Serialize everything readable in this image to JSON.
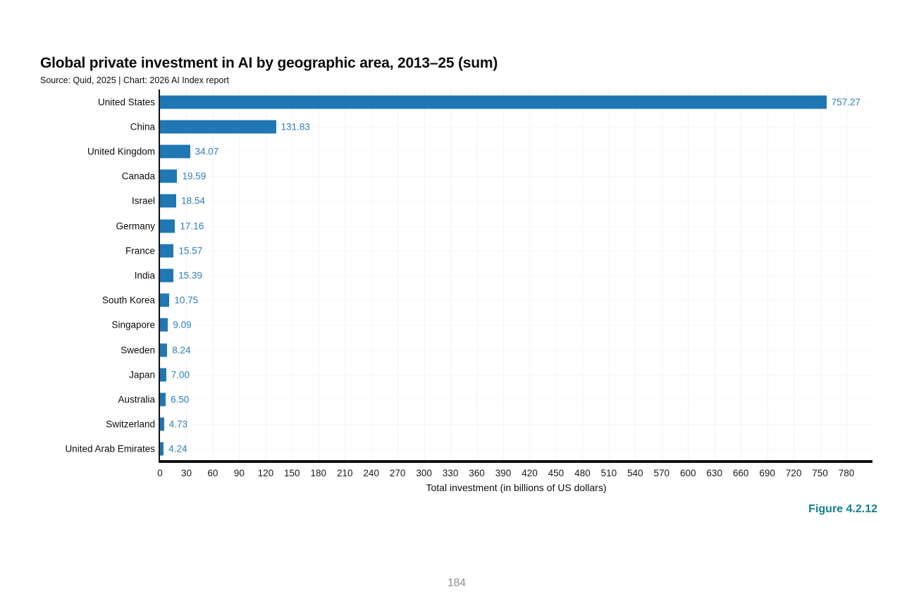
{
  "page": {
    "figure_label": "Figure 4.2.12",
    "page_number": "184"
  },
  "colors": {
    "bar": "#1f77b4",
    "value_label": "#2d7fc1",
    "figure_label": "#15808d",
    "page_number": "#8d8d8d",
    "spine": "#111111",
    "grid_vertical": "#f3f3f3",
    "grid_horizontal": "#f7f7f7"
  },
  "chart_data": {
    "type": "bar",
    "orientation": "horizontal",
    "title": "Global private investment in AI by geographic area, 2013–25 (sum)",
    "subtitle": "Source: Quid, 2025 | Chart: 2026 AI Index report",
    "xlabel": "Total investment (in billions of US dollars)",
    "ylabel": "",
    "xlim": [
      0,
      780
    ],
    "xticks": [
      0,
      30,
      60,
      90,
      120,
      150,
      180,
      210,
      240,
      270,
      300,
      330,
      360,
      390,
      420,
      450,
      480,
      510,
      540,
      570,
      600,
      630,
      660,
      690,
      720,
      750,
      780
    ],
    "grid": true,
    "legend": false,
    "categories": [
      "United States",
      "China",
      "United Kingdom",
      "Canada",
      "Israel",
      "Germany",
      "France",
      "India",
      "South Korea",
      "Singapore",
      "Sweden",
      "Japan",
      "Australia",
      "Switzerland",
      "United Arab Emirates"
    ],
    "values": [
      757.27,
      131.83,
      34.07,
      19.59,
      18.54,
      17.16,
      15.57,
      15.39,
      10.75,
      9.09,
      8.24,
      7.0,
      6.5,
      4.73,
      4.24
    ],
    "value_labels": [
      "757.27",
      "131.83",
      "34.07",
      "19.59",
      "18.54",
      "17.16",
      "15.57",
      "15.39",
      "10.75",
      "9.09",
      "8.24",
      "7.00",
      "6.50",
      "4.73",
      "4.24"
    ]
  }
}
